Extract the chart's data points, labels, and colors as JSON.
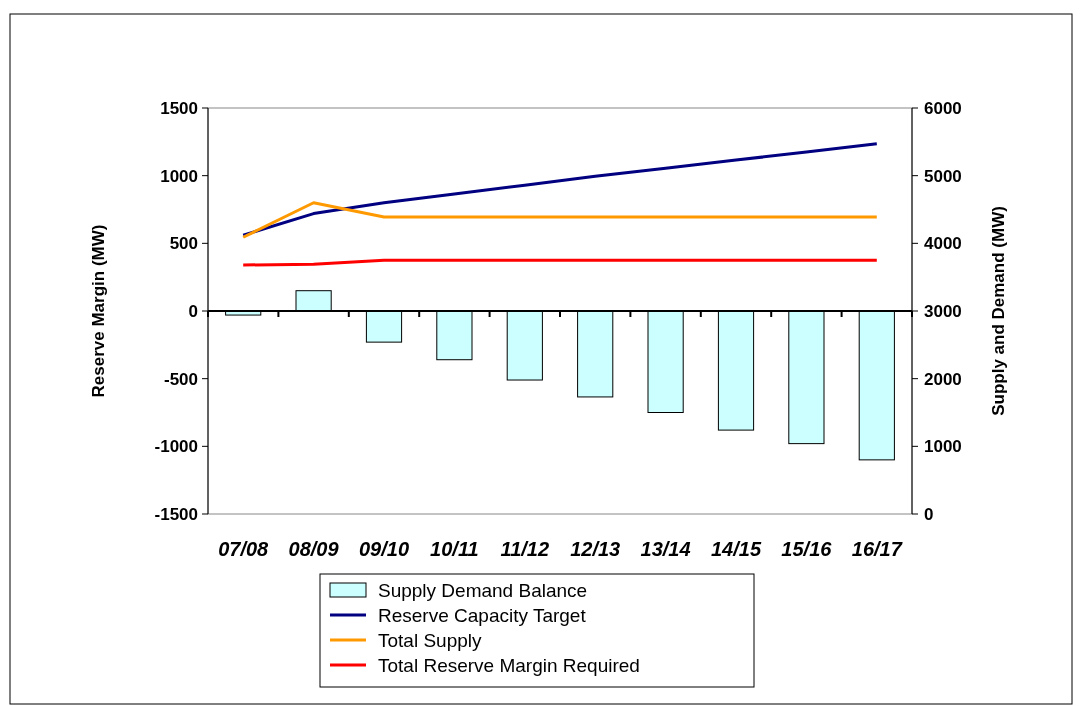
{
  "chart_data": {
    "type": "bar",
    "ylabel": "Reserve Margin (MW)",
    "y2label": "Supply and Demand (MW)",
    "categories": [
      "07/08",
      "08/09",
      "09/10",
      "10/11",
      "11/12",
      "12/13",
      "13/14",
      "14/15",
      "15/16",
      "16/17"
    ],
    "series": [
      {
        "name": "Supply Demand Balance",
        "color": "#ccffff",
        "values": [
          -30,
          150,
          -230,
          -360,
          -510,
          -635,
          -750,
          -880,
          -980,
          -1100
        ]
      },
      {
        "name": "Reserve Capacity Target",
        "type": "line",
        "axis": "y2",
        "color": "#000080",
        "values": [
          4120,
          4440,
          4600,
          4730,
          4860,
          4990,
          5110,
          5230,
          5350,
          5470
        ]
      },
      {
        "name": "Total Supply",
        "type": "line",
        "axis": "y2",
        "color": "#ff9900",
        "values": [
          4090,
          4600,
          4390,
          4390,
          4390,
          4390,
          4390,
          4390,
          4390,
          4390
        ]
      },
      {
        "name": "Total Reserve Margin Required",
        "type": "line",
        "axis": "y2",
        "color": "#ff0000",
        "values": [
          3680,
          3690,
          3750,
          3750,
          3750,
          3750,
          3750,
          3750,
          3750,
          3750
        ]
      }
    ],
    "ylim": [
      -1500,
      1500
    ],
    "yticks": [
      -1500,
      -1000,
      -500,
      0,
      500,
      1000,
      1500
    ],
    "y2lim": [
      0,
      6000
    ],
    "y2ticks": [
      0,
      1000,
      2000,
      3000,
      4000,
      5000,
      6000
    ],
    "legend": "bottom",
    "marker": "none",
    "line_style": "solid"
  }
}
